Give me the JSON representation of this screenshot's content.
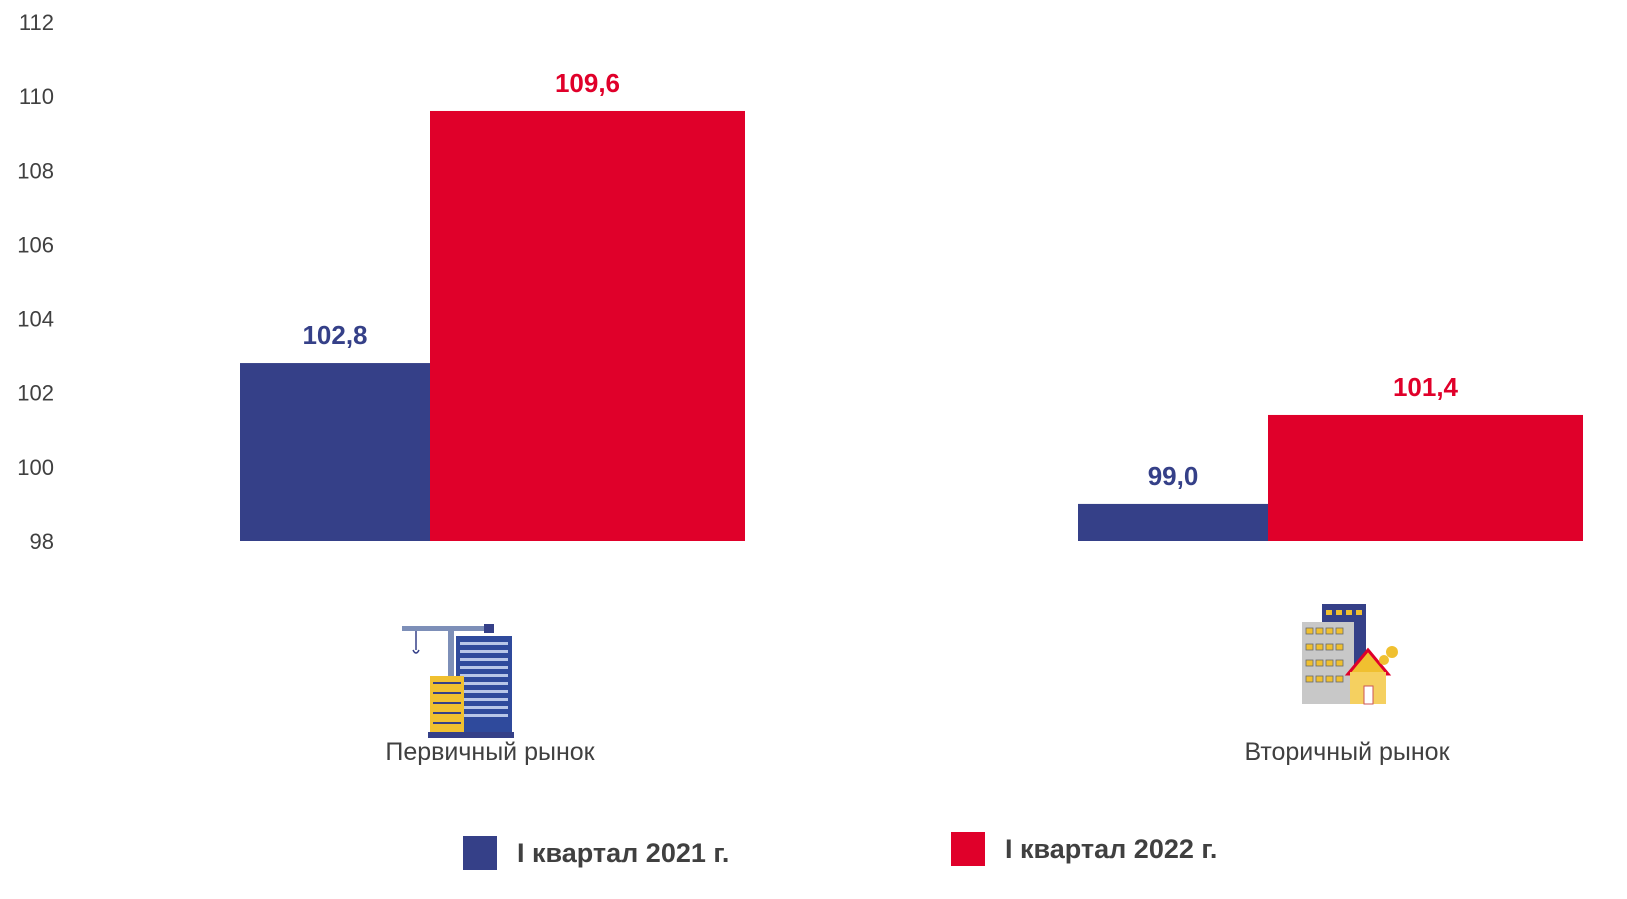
{
  "chart_data": {
    "type": "bar",
    "categories": [
      "Первичный рынок",
      "Вторичный рынок"
    ],
    "series": [
      {
        "name": "I квартал 2021 г.",
        "values": [
          102.8,
          99.0
        ],
        "labels": [
          "102,8",
          "99,0"
        ],
        "color": "#354088"
      },
      {
        "name": "I квартал 2022 г.",
        "values": [
          109.6,
          101.4
        ],
        "labels": [
          "109,6",
          "101,4"
        ],
        "color": "#e0002a"
      }
    ],
    "yticks": [
      "112",
      "110",
      "108",
      "106",
      "104",
      "102",
      "100",
      "98"
    ],
    "ylim": [
      98,
      112
    ],
    "grid": false,
    "legend": "bottom",
    "icons": [
      "construction-crane-building-icon",
      "apartment-house-icon"
    ]
  }
}
